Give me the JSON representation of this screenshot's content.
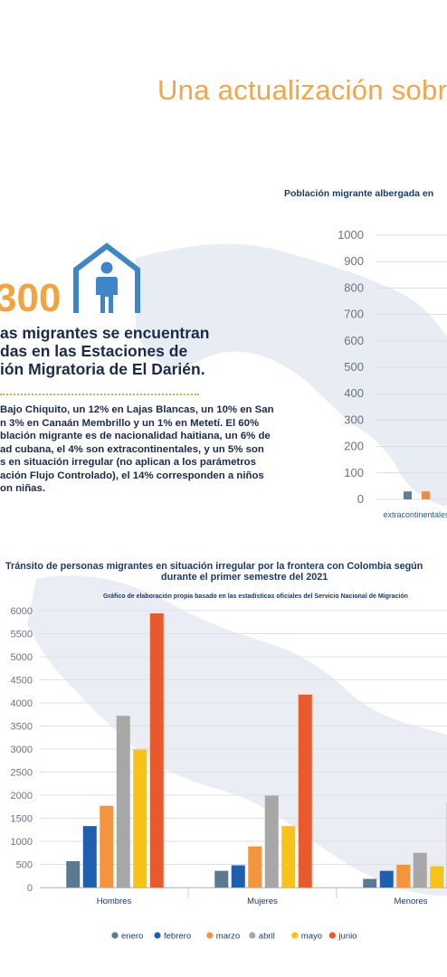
{
  "page_title": "Una actualización sobr",
  "infographic": {
    "big_number": "300",
    "headline_lines": [
      "as migrantes se encuentran",
      "das en las Estaciones de",
      "ión Migratoria de El Darién."
    ],
    "paragraph_lines": [
      "Bajo Chiquito, un 12% en Lajas Blancas, un 10% en San",
      "n 3% en Canaán Membrillo y un 1% en Metetí. El 60%",
      "blación migrante es de nacionalidad haitiana, un 6% de",
      "ad cubana, el 4% son extracontinentales, y un 5% son",
      "s en situación irregular (no aplican a los parámetros",
      "ación Flujo Controlado), el 14% corresponden a niños",
      "on niñas."
    ],
    "icon": "house-person-icon"
  },
  "chart_data": [
    {
      "type": "bar",
      "title": "Población migrante albergada en",
      "categories": [
        "extracontinentales"
      ],
      "series": [
        {
          "values": [
            30
          ],
          "color": "#5c7f96"
        },
        {
          "values": [
            30
          ],
          "color": "#f08a3c"
        }
      ],
      "yticks": [
        "0",
        "100",
        "200",
        "300",
        "400",
        "500",
        "600",
        "700",
        "800",
        "900",
        "1000"
      ],
      "ylim": [
        0,
        1000
      ],
      "grid": true
    },
    {
      "type": "bar",
      "title_lines": [
        "Tránsito de personas migrantes en situación irregular por la frontera con Colombia según",
        "durante el primer semestre del 2021"
      ],
      "subtitle": "Gráfico de elaboración propia basado en las estadísticas oficiales del Servicio Nacional de Migración",
      "categories": [
        "Hombres",
        "Mujeres",
        "Menores"
      ],
      "series": [
        {
          "name": "enero",
          "values": [
            570,
            360,
            185
          ],
          "color": "#5a7a91"
        },
        {
          "name": "febrero",
          "values": [
            1330,
            480,
            360
          ],
          "color": "#1f5fad"
        },
        {
          "name": "marzo",
          "values": [
            1770,
            890,
            490
          ],
          "color": "#f3953f"
        },
        {
          "name": "abril",
          "values": [
            3720,
            1990,
            750
          ],
          "color": "#a7a7a7"
        },
        {
          "name": "mayo",
          "values": [
            2990,
            1330,
            460
          ],
          "color": "#f7c31a"
        },
        {
          "name": "junio",
          "values": [
            5940,
            4180,
            1830
          ],
          "color": "#e85a2c"
        }
      ],
      "yticks": [
        "0",
        "500",
        "1000",
        "1500",
        "2000",
        "2500",
        "3000",
        "3500",
        "4000",
        "4500",
        "5000",
        "5500",
        "6000"
      ],
      "ylim": [
        0,
        6000
      ],
      "grid": true,
      "legend_position": "bottom"
    }
  ],
  "colors": {
    "accent": "#f2a64a",
    "navy": "#1b2a4a",
    "icon_blue": "#3f86c8"
  }
}
